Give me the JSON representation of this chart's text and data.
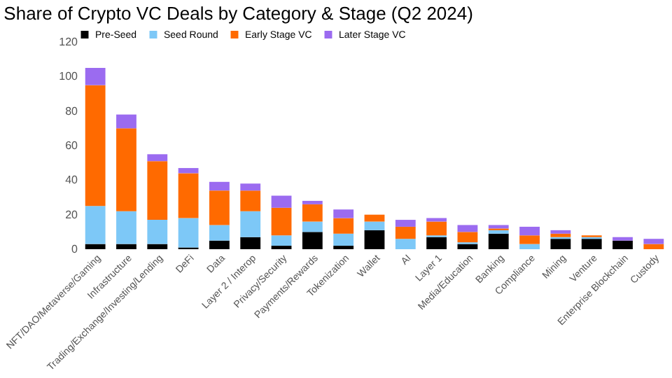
{
  "chart_data": {
    "type": "bar",
    "title": "Share of Crypto VC Deals by Category & Stage (Q2 2024)",
    "stacked": true,
    "legend": "top",
    "grid": false,
    "categories": [
      "NFT/DAO/Metaverse/Gaming",
      "Infrastructure",
      "Trading/Exchange/Investing/Lending",
      "DeFi",
      "Data",
      "Layer 2 / Interop",
      "Privacy/Security",
      "Payments/Rewards",
      "Tokenization",
      "Wallet",
      "AI",
      "Layer 1",
      "Media/Education",
      "Banking",
      "Compliance",
      "Mining",
      "Venture",
      "Enterprise Blockchain",
      "Custody"
    ],
    "ylim": [
      0,
      120
    ],
    "yticks": [
      0,
      20,
      40,
      60,
      80,
      100,
      120
    ],
    "series": [
      {
        "name": "Pre-Seed",
        "color": "#000000",
        "values": [
          3,
          3,
          3,
          1,
          5,
          7,
          2,
          10,
          2,
          11,
          0,
          7,
          3,
          9,
          0,
          6,
          6,
          5,
          0
        ]
      },
      {
        "name": "Seed Round",
        "color": "#7dc8f7",
        "values": [
          22,
          19,
          14,
          17,
          9,
          15,
          6,
          6,
          7,
          5,
          6,
          1,
          1,
          2,
          3,
          1,
          1,
          0,
          0
        ]
      },
      {
        "name": "Early Stage VC",
        "color": "#ff6a00",
        "values": [
          70,
          48,
          34,
          26,
          20,
          12,
          16,
          10,
          9,
          4,
          7,
          8,
          6,
          1,
          5,
          2,
          1,
          0,
          3
        ]
      },
      {
        "name": "Later Stage VC",
        "color": "#9b6bf0",
        "values": [
          10,
          8,
          4,
          3,
          5,
          4,
          7,
          2,
          5,
          0,
          4,
          2,
          4,
          2,
          5,
          2,
          0,
          2,
          3
        ]
      }
    ]
  }
}
